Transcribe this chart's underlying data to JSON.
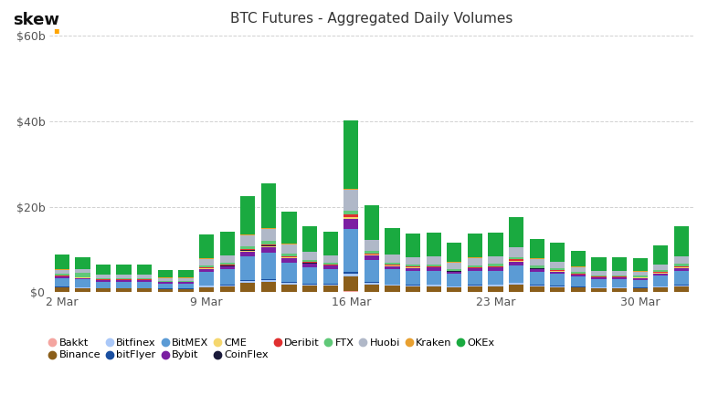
{
  "title": "BTC Futures - Aggregated Daily Volumes",
  "skew_dot_color": "#FFA500",
  "background_color": "#ffffff",
  "ylim": [
    0,
    60000000000
  ],
  "yticks": [
    0,
    20000000000,
    40000000000,
    60000000000
  ],
  "ytick_labels": [
    "$0",
    "$20b",
    "$40b",
    "$60b"
  ],
  "n_dates": 31,
  "xtick_positions": [
    0,
    7,
    14,
    21,
    28
  ],
  "xtick_labels": [
    "2 Mar",
    "9 Mar",
    "16 Mar",
    "23 Mar",
    "30 Mar"
  ],
  "exchanges": [
    "Bakkt",
    "Binance",
    "Bitfinex",
    "bitFlyer",
    "BitMEX",
    "Bybit",
    "CME",
    "CoinFlex",
    "Deribit",
    "FTX",
    "Huobi",
    "Kraken",
    "OKEx"
  ],
  "colors": {
    "Bakkt": "#f4a5a0",
    "Binance": "#8B5E1A",
    "Bitfinex": "#aac8f8",
    "bitFlyer": "#1a4fa0",
    "BitMEX": "#5b9bd5",
    "Bybit": "#7B1FA2",
    "CME": "#F5D76E",
    "CoinFlex": "#1a1a3a",
    "Deribit": "#e03030",
    "FTX": "#60c878",
    "Huobi": "#b0b8c8",
    "Kraken": "#e8a030",
    "OKEx": "#1aaa40"
  },
  "data": {
    "Bakkt": [
      0.05,
      0.05,
      0.04,
      0.04,
      0.04,
      0.03,
      0.03,
      0.06,
      0.06,
      0.15,
      0.18,
      0.12,
      0.08,
      0.08,
      0.25,
      0.1,
      0.08,
      0.07,
      0.07,
      0.05,
      0.06,
      0.07,
      0.1,
      0.07,
      0.06,
      0.05,
      0.04,
      0.04,
      0.04,
      0.05,
      0.06
    ],
    "Binance": [
      1.0,
      0.9,
      0.8,
      0.8,
      0.8,
      0.7,
      0.7,
      1.2,
      1.3,
      2.0,
      2.2,
      1.7,
      1.5,
      1.4,
      3.5,
      1.8,
      1.4,
      1.3,
      1.4,
      1.1,
      1.3,
      1.4,
      1.7,
      1.3,
      1.2,
      1.0,
      0.9,
      0.9,
      0.8,
      1.1,
      1.3
    ],
    "Bitfinex": [
      0.15,
      0.15,
      0.12,
      0.12,
      0.12,
      0.1,
      0.1,
      0.25,
      0.3,
      0.45,
      0.5,
      0.4,
      0.32,
      0.28,
      0.6,
      0.35,
      0.25,
      0.24,
      0.24,
      0.2,
      0.24,
      0.25,
      0.32,
      0.24,
      0.2,
      0.17,
      0.15,
      0.15,
      0.14,
      0.18,
      0.25
    ],
    "bitFlyer": [
      0.1,
      0.1,
      0.08,
      0.08,
      0.08,
      0.07,
      0.07,
      0.15,
      0.18,
      0.25,
      0.28,
      0.22,
      0.18,
      0.16,
      0.35,
      0.22,
      0.16,
      0.15,
      0.15,
      0.12,
      0.14,
      0.15,
      0.18,
      0.14,
      0.12,
      0.1,
      0.08,
      0.08,
      0.08,
      0.1,
      0.14
    ],
    "BitMEX": [
      2.0,
      1.8,
      1.5,
      1.5,
      1.5,
      1.2,
      1.2,
      3.2,
      3.5,
      5.5,
      6.0,
      4.5,
      3.8,
      3.5,
      10.0,
      5.0,
      3.5,
      3.2,
      3.2,
      2.8,
      3.2,
      3.2,
      4.0,
      3.0,
      2.7,
      2.3,
      2.0,
      2.0,
      1.9,
      2.5,
      3.2
    ],
    "Bybit": [
      0.4,
      0.35,
      0.3,
      0.3,
      0.3,
      0.25,
      0.25,
      0.6,
      0.7,
      1.2,
      1.4,
      1.0,
      0.8,
      0.75,
      2.5,
      1.1,
      0.75,
      0.7,
      0.7,
      0.6,
      0.7,
      0.7,
      0.9,
      0.65,
      0.55,
      0.48,
      0.4,
      0.4,
      0.38,
      0.5,
      0.65
    ],
    "CME": [
      0.1,
      0.1,
      0.08,
      0.08,
      0.08,
      0,
      0,
      0.12,
      0.12,
      0.2,
      0.25,
      0.18,
      0.12,
      0,
      0.35,
      0.18,
      0.12,
      0.1,
      0.1,
      0,
      0,
      0.1,
      0.15,
      0.1,
      0.08,
      0.08,
      0,
      0,
      0.08,
      0.08,
      0.15
    ],
    "CoinFlex": [
      0.02,
      0.02,
      0.02,
      0.02,
      0.02,
      0.02,
      0.02,
      0.03,
      0.03,
      0.05,
      0.06,
      0.04,
      0.03,
      0.03,
      0.08,
      0.04,
      0.03,
      0.03,
      0.03,
      0.02,
      0.03,
      0.03,
      0.04,
      0.03,
      0.02,
      0.02,
      0.02,
      0.02,
      0.02,
      0.02,
      0.03
    ],
    "Deribit": [
      0.12,
      0.12,
      0.1,
      0.1,
      0.1,
      0.08,
      0.08,
      0.18,
      0.22,
      0.35,
      0.4,
      0.3,
      0.24,
      0.22,
      0.55,
      0.3,
      0.22,
      0.2,
      0.2,
      0.17,
      0.2,
      0.22,
      0.28,
      0.2,
      0.18,
      0.15,
      0.12,
      0.12,
      0.12,
      0.15,
      0.22
    ],
    "FTX": [
      0.35,
      0.9,
      0.35,
      0.35,
      0.35,
      0.28,
      0.28,
      0.55,
      0.55,
      0.7,
      0.7,
      0.6,
      0.5,
      0.5,
      0.8,
      0.6,
      0.5,
      0.48,
      0.48,
      0.42,
      0.48,
      0.5,
      0.6,
      0.48,
      0.42,
      0.35,
      0.32,
      0.32,
      0.32,
      0.42,
      0.6
    ],
    "Huobi": [
      1.0,
      0.9,
      0.8,
      0.8,
      0.8,
      0.65,
      0.65,
      1.5,
      1.6,
      2.5,
      2.8,
      2.1,
      1.8,
      1.7,
      5.0,
      2.5,
      1.8,
      1.7,
      1.8,
      1.5,
      1.7,
      1.8,
      2.2,
      1.6,
      1.5,
      1.2,
      1.0,
      1.0,
      1.0,
      1.3,
      1.8
    ],
    "Kraken": [
      0.06,
      0.06,
      0.05,
      0.05,
      0.05,
      0.04,
      0.04,
      0.09,
      0.1,
      0.16,
      0.2,
      0.14,
      0.1,
      0.1,
      0.2,
      0.13,
      0.1,
      0.09,
      0.09,
      0.07,
      0.09,
      0.09,
      0.12,
      0.09,
      0.08,
      0.06,
      0.05,
      0.05,
      0.05,
      0.07,
      0.09
    ],
    "OKEx": [
      3.5,
      2.8,
      2.2,
      2.2,
      2.2,
      1.8,
      1.8,
      5.5,
      5.5,
      9.0,
      10.5,
      7.5,
      6.0,
      5.5,
      16.0,
      8.0,
      6.0,
      5.5,
      5.5,
      4.5,
      5.5,
      5.5,
      7.0,
      4.5,
      4.5,
      3.8,
      3.2,
      3.2,
      3.0,
      4.5,
      7.0
    ]
  }
}
